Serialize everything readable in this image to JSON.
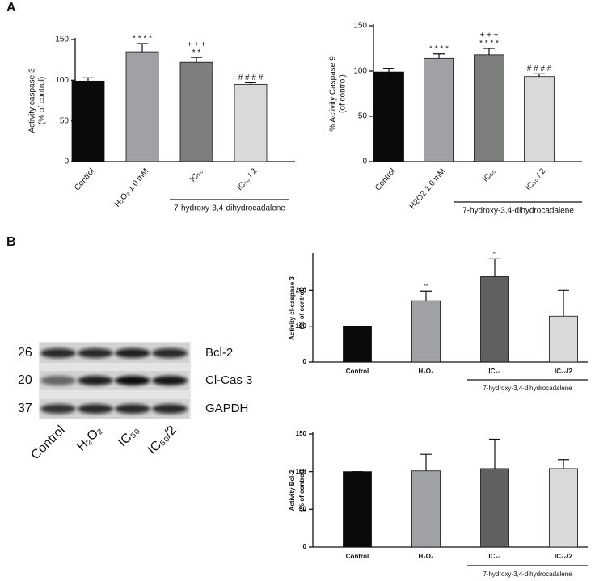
{
  "panel_labels": [
    "A",
    "B"
  ],
  "blot": {
    "markers": [
      "26",
      "20",
      "37"
    ],
    "bands": [
      "Bcl-2",
      "Cl-Cas 3",
      "GAPDH"
    ],
    "lanes": [
      "Control",
      "H₂O₂",
      "IC₅₀",
      "IC₅₀/2"
    ]
  },
  "chart_data": [
    {
      "type": "bar",
      "ylabel": [
        "Activity caspase 3",
        "(% of control)"
      ],
      "categories": [
        "Control",
        "H₂O₂ 1.0 mM",
        "IC₅₀",
        "IC₅₀ / 2"
      ],
      "values": [
        99,
        135,
        122,
        95
      ],
      "errors": [
        4,
        10,
        6,
        2
      ],
      "annotations": [
        null,
        [
          "* * * *"
        ],
        [
          "+ + +",
          "* *"
        ],
        [
          "# # # #"
        ]
      ],
      "colors": [
        "#0a0a0a",
        "#a0a1a4",
        "#7d7f7d",
        "#d8d9d8"
      ],
      "ylim": [
        0,
        150
      ],
      "yticks": [
        0,
        50,
        100,
        150
      ],
      "group_label": "7-hydroxy-3,4-dihydrocadalene"
    },
    {
      "type": "bar",
      "ylabel": [
        "% Activity Caspase 9",
        "(of control)"
      ],
      "categories": [
        "Control",
        "H2O2 1.0 mM",
        "IC₅₀",
        "IC₅₀ / 2"
      ],
      "values": [
        99,
        114,
        118,
        94
      ],
      "errors": [
        4,
        5,
        7,
        3
      ],
      "annotations": [
        null,
        [
          "* * * *"
        ],
        [
          "+ + +",
          "* * * *"
        ],
        [
          "# # # #"
        ]
      ],
      "colors": [
        "#0a0a0a",
        "#a0a1a4",
        "#7d7f7d",
        "#d8d9d8"
      ],
      "ylim": [
        0,
        150
      ],
      "yticks": [
        0,
        50,
        100,
        150
      ],
      "group_label": "7-hydroxy-3,4-dihydrocadalene"
    },
    {
      "type": "bar",
      "ylabel": [
        "Activity cl-caspase 3",
        "(% of control)"
      ],
      "categories": [
        "Control",
        "H₂O₂",
        "IC₅₀",
        "IC₅₀/2"
      ],
      "values": [
        100,
        171,
        238,
        128
      ],
      "errors": [
        0,
        27,
        50,
        72
      ],
      "annotations": [
        null,
        [
          "**"
        ],
        [
          "**"
        ],
        null
      ],
      "colors": [
        "#0a0a0a",
        "#a0a1a4",
        "#606062",
        "#d8d9d8"
      ],
      "ylim": [
        0,
        300
      ],
      "yticks": [
        0,
        100,
        200
      ],
      "group_label": "7-hydroxy-3,4-dihydrocadalene"
    },
    {
      "type": "bar",
      "ylabel": [
        "Activity Bcl-2",
        "(% of control)"
      ],
      "categories": [
        "Control",
        "H₂O₂",
        "IC₅₀",
        "IC₅₀/2"
      ],
      "values": [
        100,
        101,
        104,
        104
      ],
      "errors": [
        0,
        22,
        39,
        12
      ],
      "colors": [
        "#0a0a0a",
        "#a0a1a4",
        "#606062",
        "#d8d9d8"
      ],
      "ylim": [
        0,
        150
      ],
      "yticks": [
        0,
        50,
        100,
        150
      ],
      "group_label": "7-hydroxy-3,4-dihydrocadalene"
    }
  ]
}
